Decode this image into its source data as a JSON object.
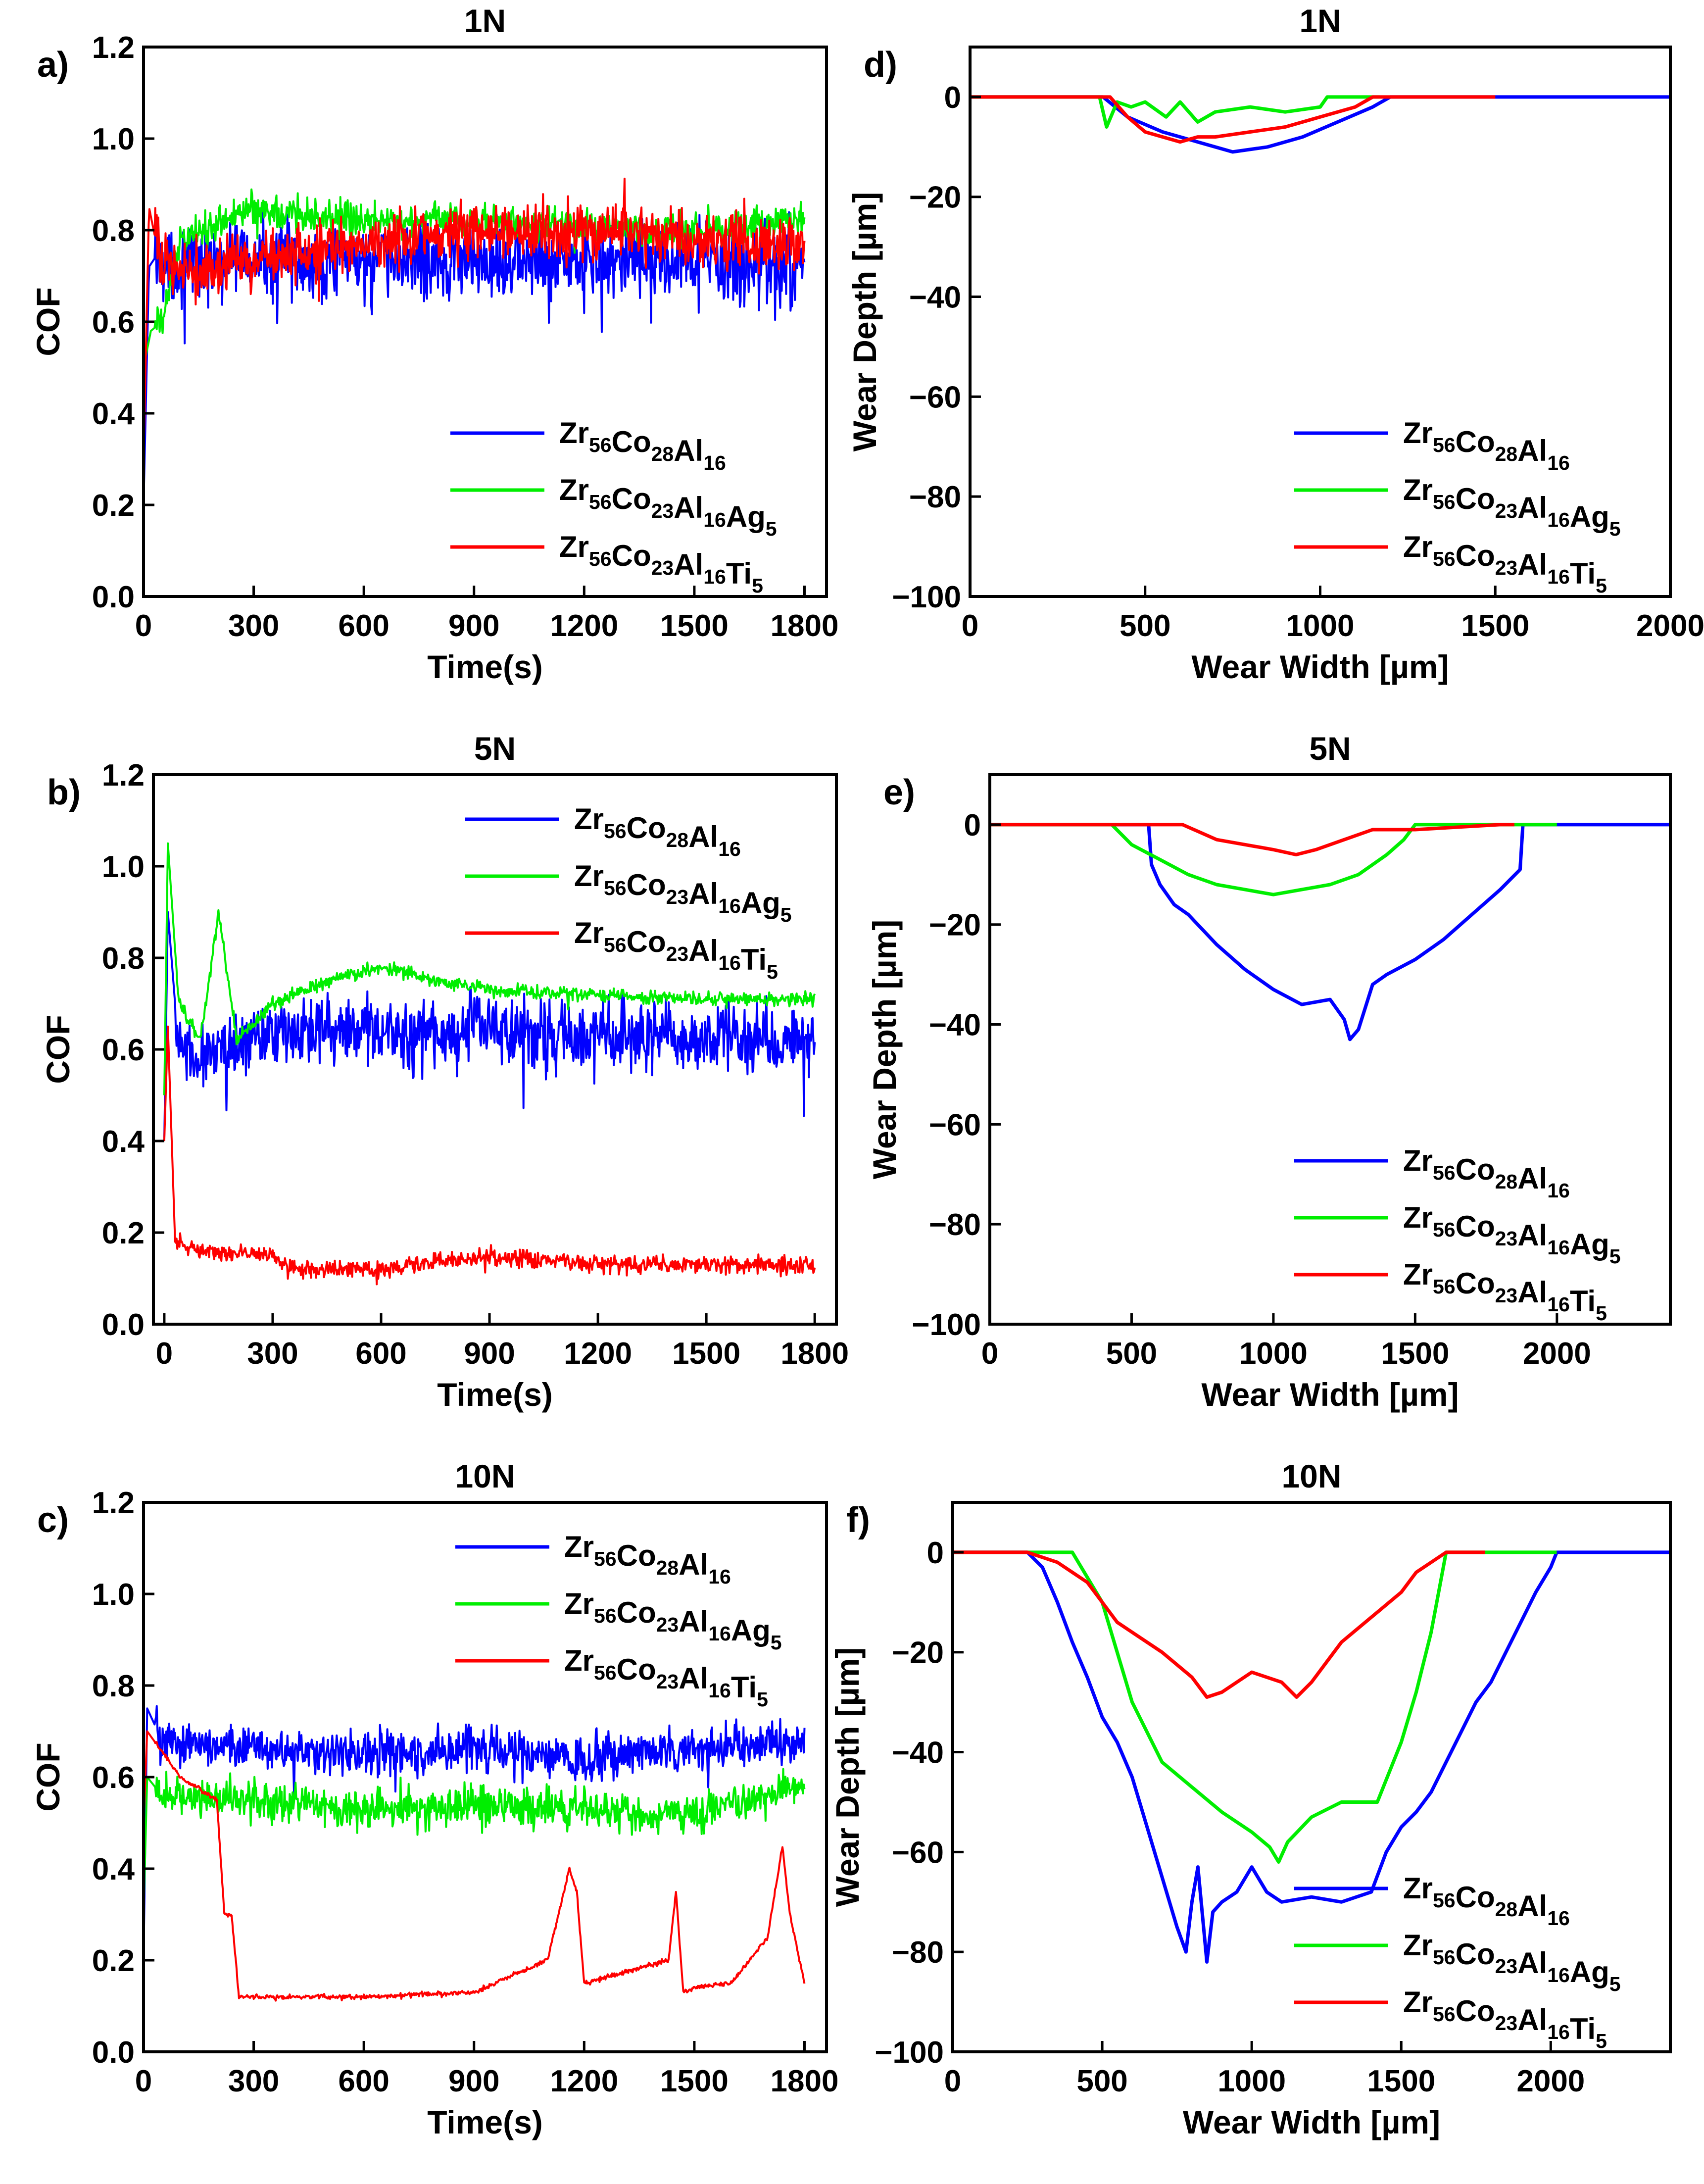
{
  "chart_data": [
    {
      "id": "a",
      "type": "line",
      "panel_label": "a)",
      "title": "1N",
      "xlabel": "Time(s)",
      "ylabel": "COF",
      "xlim": [
        0,
        1860
      ],
      "ylim": [
        0,
        1.2
      ],
      "xticks": [
        "0",
        "300",
        "600",
        "900",
        "1200",
        "1500",
        "1800"
      ],
      "yticks": [
        "0.0",
        "0.2",
        "0.4",
        "0.6",
        "0.8",
        "1.0",
        "1.2"
      ],
      "legend_position": "bottom-right",
      "series": [
        {
          "name": "Zr56Co28Al16",
          "color": "#0000ff",
          "base": 0.74,
          "noise": 0.07,
          "x": [
            0,
            15,
            40,
            80,
            300,
            600,
            900,
            1200,
            1500,
            1800
          ],
          "y": [
            0.2,
            0.72,
            0.75,
            0.72,
            0.74,
            0.73,
            0.74,
            0.73,
            0.73,
            0.72
          ]
        },
        {
          "name": "Zr56Co23Al16Ag5",
          "color": "#00ee00",
          "base": 0.82,
          "noise": 0.03,
          "x": [
            0,
            20,
            50,
            100,
            300,
            600,
            900,
            1200,
            1500,
            1800
          ],
          "y": [
            0.5,
            0.58,
            0.6,
            0.78,
            0.85,
            0.82,
            0.82,
            0.81,
            0.8,
            0.82
          ]
        },
        {
          "name": "Zr56Co23Al16Ti5",
          "color": "#ff0000",
          "base": 0.77,
          "noise": 0.05,
          "x": [
            0,
            15,
            40,
            100,
            300,
            600,
            900,
            1200,
            1500,
            1800
          ],
          "y": [
            0.3,
            0.85,
            0.75,
            0.72,
            0.73,
            0.77,
            0.8,
            0.8,
            0.78,
            0.76
          ]
        }
      ]
    },
    {
      "id": "b",
      "type": "line",
      "panel_label": "b)",
      "title": "5N",
      "xlabel": "Time(s)",
      "ylabel": "COF",
      "xlim": [
        -30,
        1860
      ],
      "ylim": [
        0,
        1.2
      ],
      "xticks": [
        "0",
        "300",
        "600",
        "900",
        "1200",
        "1500",
        "1800"
      ],
      "yticks": [
        "0.0",
        "0.2",
        "0.4",
        "0.6",
        "0.8",
        "1.0",
        "1.2"
      ],
      "legend_position": "top-right",
      "series": [
        {
          "name": "Zr56Co28Al16",
          "color": "#0000ff",
          "base": 0.63,
          "noise": 0.06,
          "x": [
            0,
            10,
            40,
            100,
            300,
            600,
            900,
            1200,
            1500,
            1800
          ],
          "y": [
            0.4,
            0.9,
            0.6,
            0.58,
            0.63,
            0.64,
            0.64,
            0.63,
            0.63,
            0.62
          ]
        },
        {
          "name": "Zr56Co23Al16Ag5",
          "color": "#00ee00",
          "base": 0.72,
          "noise": 0.012,
          "x": [
            0,
            10,
            40,
            100,
            150,
            200,
            300,
            450,
            600,
            750,
            900,
            1200,
            1500,
            1800
          ],
          "y": [
            0.5,
            1.05,
            0.7,
            0.62,
            0.9,
            0.62,
            0.7,
            0.75,
            0.78,
            0.75,
            0.73,
            0.72,
            0.71,
            0.71
          ]
        },
        {
          "name": "Zr56Co23Al16Ti5",
          "color": "#ff0000",
          "base": 0.13,
          "noise": 0.015,
          "x": [
            0,
            10,
            30,
            100,
            300,
            350,
            600,
            900,
            1200,
            1500,
            1800
          ],
          "y": [
            0.4,
            0.65,
            0.18,
            0.16,
            0.15,
            0.12,
            0.12,
            0.15,
            0.13,
            0.13,
            0.13
          ]
        }
      ]
    },
    {
      "id": "c",
      "type": "line",
      "panel_label": "c)",
      "title": "10N",
      "xlabel": "Time(s)",
      "ylabel": "COF",
      "xlim": [
        0,
        1860
      ],
      "ylim": [
        0,
        1.2
      ],
      "xticks": [
        "0",
        "300",
        "600",
        "900",
        "1200",
        "1500",
        "1800"
      ],
      "yticks": [
        "0.0",
        "0.2",
        "0.4",
        "0.6",
        "0.8",
        "1.0",
        "1.2"
      ],
      "legend_position": "top-right",
      "series": [
        {
          "name": "Zr56Co28Al16",
          "color": "#0000ff",
          "base": 0.65,
          "noise": 0.04,
          "x": [
            0,
            10,
            50,
            300,
            600,
            900,
            1200,
            1500,
            1800
          ],
          "y": [
            0.2,
            0.75,
            0.68,
            0.66,
            0.65,
            0.66,
            0.64,
            0.66,
            0.68
          ]
        },
        {
          "name": "Zr56Co23Al16Ag5",
          "color": "#00ee00",
          "base": 0.54,
          "noise": 0.035,
          "x": [
            0,
            10,
            50,
            300,
            600,
            900,
            1200,
            1500,
            1800
          ],
          "y": [
            0.3,
            0.6,
            0.56,
            0.55,
            0.53,
            0.54,
            0.53,
            0.52,
            0.58
          ]
        },
        {
          "name": "Zr56Co23Al16Ti5",
          "color": "#ff0000",
          "base": 0.12,
          "noise": 0.004,
          "x": [
            0,
            10,
            100,
            200,
            220,
            240,
            260,
            600,
            900,
            1100,
            1160,
            1180,
            1200,
            1430,
            1450,
            1470,
            1500,
            1600,
            1700,
            1740,
            1760,
            1800
          ],
          "y": [
            0.5,
            0.7,
            0.6,
            0.55,
            0.3,
            0.3,
            0.12,
            0.12,
            0.13,
            0.2,
            0.4,
            0.35,
            0.15,
            0.2,
            0.35,
            0.13,
            0.14,
            0.15,
            0.25,
            0.45,
            0.3,
            0.15
          ]
        }
      ]
    },
    {
      "id": "d",
      "type": "line",
      "panel_label": "d)",
      "title": "1N",
      "xlabel": "Wear Width [µm]",
      "ylabel": "Wear Depth [µm]",
      "xlim": [
        0,
        2000
      ],
      "ylim": [
        -100,
        10
      ],
      "xticks": [
        "0",
        "500",
        "1000",
        "1500",
        "2000"
      ],
      "yticks": [
        "−100",
        "−80",
        "−60",
        "−40",
        "−20",
        "0"
      ],
      "legend_position": "bottom-right",
      "series": [
        {
          "name": "Zr56Co28Al16",
          "color": "#0000ff",
          "x": [
            0,
            380,
            450,
            550,
            650,
            750,
            850,
            950,
            1050,
            1150,
            1200,
            2000
          ],
          "y": [
            0,
            0,
            -4,
            -7,
            -9,
            -11,
            -10,
            -8,
            -5,
            -2,
            0,
            0
          ]
        },
        {
          "name": "Zr56Co23Al16Ag5",
          "color": "#00ee00",
          "x": [
            0,
            370,
            390,
            420,
            460,
            500,
            560,
            600,
            650,
            700,
            800,
            900,
            1000,
            1020,
            1170
          ],
          "y": [
            0,
            0,
            -6,
            -1,
            -2,
            -1,
            -4,
            -1,
            -5,
            -3,
            -2,
            -3,
            -2,
            0,
            0
          ]
        },
        {
          "name": "Zr56Co23Al16Ti5",
          "color": "#ff0000",
          "x": [
            0,
            400,
            450,
            500,
            550,
            600,
            650,
            700,
            800,
            900,
            1000,
            1100,
            1150,
            1500
          ],
          "y": [
            0,
            0,
            -4,
            -7,
            -8,
            -9,
            -8,
            -8,
            -7,
            -6,
            -4,
            -2,
            0,
            0
          ]
        }
      ]
    },
    {
      "id": "e",
      "type": "line",
      "panel_label": "e)",
      "title": "5N",
      "xlabel": "Wear Width [µm]",
      "ylabel": "Wear Depth [µm]",
      "xlim": [
        0,
        2400
      ],
      "ylim": [
        -100,
        10
      ],
      "xticks": [
        "0",
        "500",
        "1000",
        "1500",
        "2000"
      ],
      "yticks": [
        "−100",
        "−80",
        "−60",
        "−40",
        "−20",
        "0"
      ],
      "legend_position": "bottom-right",
      "series": [
        {
          "name": "Zr56Co28Al16",
          "color": "#0000ff",
          "x": [
            0,
            560,
            570,
            600,
            650,
            700,
            800,
            900,
            1000,
            1100,
            1200,
            1250,
            1270,
            1300,
            1350,
            1400,
            1500,
            1600,
            1700,
            1800,
            1870,
            1880,
            2400
          ],
          "y": [
            0,
            0,
            -8,
            -12,
            -16,
            -18,
            -24,
            -29,
            -33,
            -36,
            -35,
            -39,
            -43,
            -41,
            -32,
            -30,
            -27,
            -23,
            -18,
            -13,
            -9,
            0,
            0
          ]
        },
        {
          "name": "Zr56Co23Al16Ag5",
          "color": "#00ee00",
          "x": [
            0,
            330,
            430,
            500,
            600,
            700,
            800,
            900,
            1000,
            1100,
            1200,
            1300,
            1400,
            1460,
            1500,
            2000
          ],
          "y": [
            0,
            0,
            0,
            -4,
            -7,
            -10,
            -12,
            -13,
            -14,
            -13,
            -12,
            -10,
            -6,
            -3,
            0,
            0
          ]
        },
        {
          "name": "Zr56Co23Al16Ti5",
          "color": "#ff0000",
          "x": [
            0,
            400,
            680,
            800,
            900,
            1000,
            1080,
            1150,
            1250,
            1350,
            1500,
            1800,
            1850
          ],
          "y": [
            0,
            0,
            0,
            -3,
            -4,
            -5,
            -6,
            -5,
            -3,
            -1,
            -1,
            0,
            0
          ]
        }
      ]
    },
    {
      "id": "f",
      "type": "line",
      "panel_label": "f)",
      "title": "10N",
      "xlabel": "Wear Width [µm]",
      "ylabel": "Wear Depth [µm]",
      "xlim": [
        0,
        2400
      ],
      "ylim": [
        -100,
        10
      ],
      "xticks": [
        "0",
        "500",
        "1000",
        "1500",
        "2000"
      ],
      "yticks": [
        "−100",
        "−80",
        "−60",
        "−40",
        "−20",
        "0"
      ],
      "legend_position": "bottom-right",
      "series": [
        {
          "name": "Zr56Co28Al16",
          "color": "#0000ff",
          "x": [
            0,
            250,
            300,
            350,
            400,
            450,
            500,
            550,
            600,
            650,
            700,
            750,
            780,
            800,
            820,
            850,
            870,
            900,
            950,
            1000,
            1050,
            1100,
            1200,
            1300,
            1400,
            1450,
            1500,
            1550,
            1600,
            1650,
            1700,
            1750,
            1800,
            1850,
            1900,
            1950,
            2000,
            2020,
            2400
          ],
          "y": [
            0,
            0,
            -3,
            -10,
            -18,
            -25,
            -33,
            -38,
            -45,
            -55,
            -65,
            -75,
            -80,
            -70,
            -63,
            -82,
            -72,
            -70,
            -68,
            -63,
            -68,
            -70,
            -69,
            -70,
            -68,
            -60,
            -55,
            -52,
            -48,
            -42,
            -36,
            -30,
            -26,
            -20,
            -14,
            -8,
            -3,
            0,
            0
          ]
        },
        {
          "name": "Zr56Co23Al16Ag5",
          "color": "#00ee00",
          "x": [
            0,
            400,
            500,
            550,
            600,
            700,
            800,
            900,
            1000,
            1060,
            1090,
            1120,
            1200,
            1300,
            1420,
            1500,
            1550,
            1600,
            1650,
            2020
          ],
          "y": [
            0,
            0,
            -10,
            -20,
            -30,
            -42,
            -47,
            -52,
            -56,
            -59,
            -62,
            -58,
            -53,
            -50,
            -50,
            -38,
            -28,
            -16,
            0,
            0
          ]
        },
        {
          "name": "Zr56Co23Al16Ti5",
          "color": "#ff0000",
          "x": [
            0,
            250,
            350,
            400,
            450,
            500,
            550,
            600,
            700,
            800,
            850,
            900,
            1000,
            1100,
            1150,
            1200,
            1250,
            1300,
            1400,
            1500,
            1550,
            1600,
            1650,
            1780
          ],
          "y": [
            0,
            0,
            -2,
            -4,
            -6,
            -10,
            -14,
            -16,
            -20,
            -25,
            -29,
            -28,
            -24,
            -26,
            -29,
            -26,
            -22,
            -18,
            -13,
            -8,
            -4,
            -2,
            0,
            0
          ]
        }
      ]
    }
  ]
}
